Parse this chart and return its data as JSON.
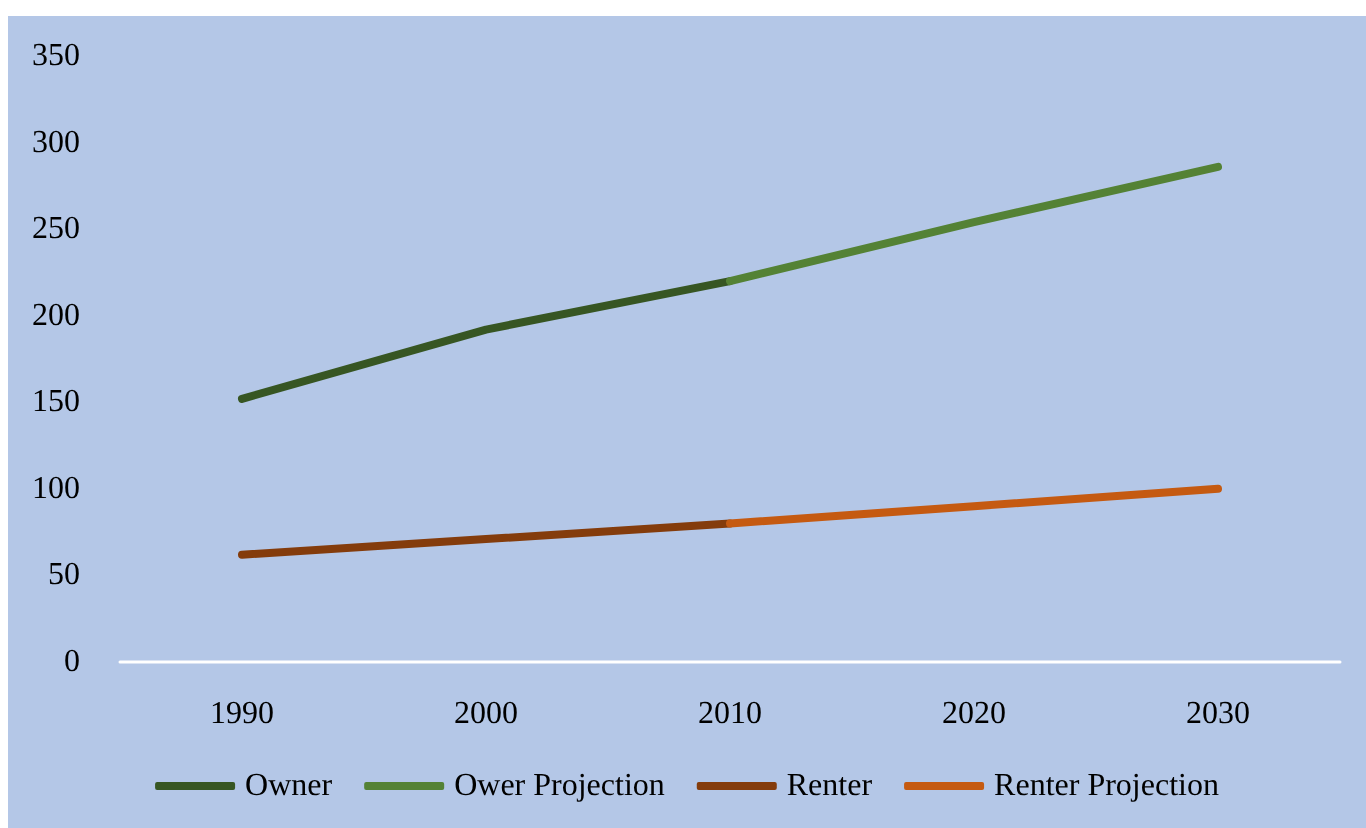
{
  "chart_data": {
    "type": "line",
    "categories": [
      "1990",
      "2000",
      "2010",
      "2020",
      "2030"
    ],
    "series": [
      {
        "name": "Owner",
        "color": "#375623",
        "values": [
          152,
          192,
          220,
          null,
          null
        ]
      },
      {
        "name": "Ower Projection",
        "color": "#548235",
        "values": [
          null,
          null,
          220,
          254,
          286
        ]
      },
      {
        "name": "Renter",
        "color": "#843c0c",
        "values": [
          62,
          71,
          80,
          null,
          null
        ]
      },
      {
        "name": "Renter Projection",
        "color": "#c55a11",
        "values": [
          null,
          null,
          80,
          90,
          100
        ]
      }
    ],
    "ylim": [
      0,
      350
    ],
    "yticks": [
      0,
      50,
      100,
      150,
      200,
      250,
      300,
      350
    ],
    "grid": false,
    "legend": "bottom",
    "marker": "none",
    "line_style": "solid"
  }
}
